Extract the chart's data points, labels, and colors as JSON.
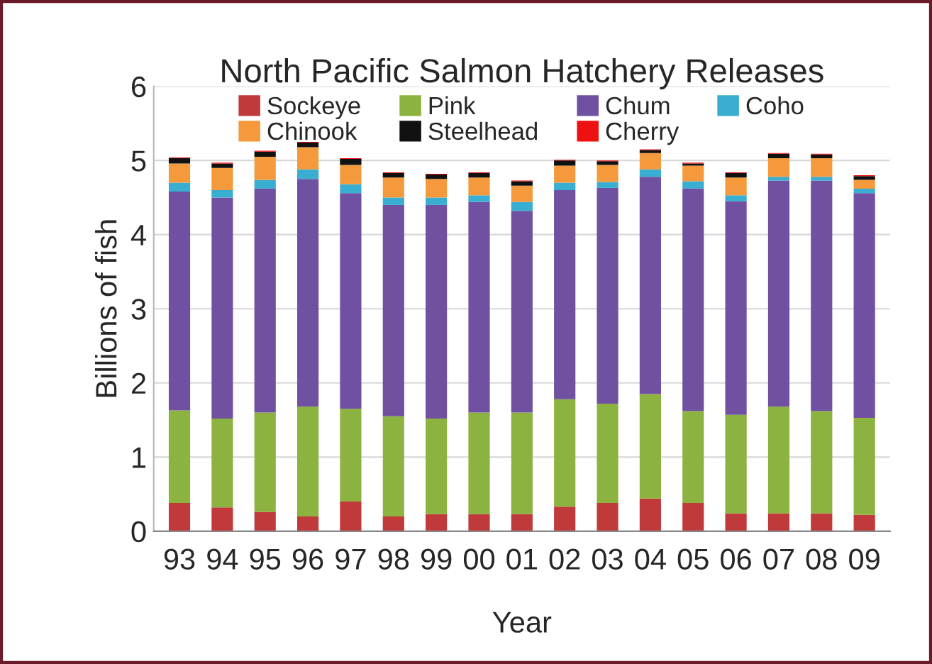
{
  "chart_data": {
    "type": "bar",
    "stacked": true,
    "title": "North Pacific Salmon Hatchery Releases",
    "xlabel": "Year",
    "ylabel": "Billions of fish",
    "categories": [
      "93",
      "94",
      "95",
      "96",
      "97",
      "98",
      "99",
      "00",
      "01",
      "02",
      "03",
      "04",
      "05",
      "06",
      "07",
      "08",
      "09"
    ],
    "series": [
      {
        "name": "Sockeye",
        "color": "#c0393b",
        "values": [
          0.38,
          0.32,
          0.26,
          0.2,
          0.4,
          0.2,
          0.23,
          0.23,
          0.23,
          0.33,
          0.38,
          0.44,
          0.38,
          0.24,
          0.24,
          0.24,
          0.22
        ]
      },
      {
        "name": "Pink",
        "color": "#8cb340",
        "values": [
          1.25,
          1.2,
          1.34,
          1.48,
          1.25,
          1.35,
          1.29,
          1.37,
          1.37,
          1.45,
          1.34,
          1.41,
          1.24,
          1.33,
          1.44,
          1.38,
          1.31
        ]
      },
      {
        "name": "Chum",
        "color": "#7050a0",
        "values": [
          2.95,
          2.98,
          3.02,
          3.07,
          2.91,
          2.85,
          2.88,
          2.84,
          2.72,
          2.82,
          2.91,
          2.93,
          3.0,
          2.88,
          3.05,
          3.11,
          3.03
        ]
      },
      {
        "name": "Coho",
        "color": "#3aaed0",
        "values": [
          0.12,
          0.1,
          0.12,
          0.13,
          0.12,
          0.1,
          0.1,
          0.09,
          0.12,
          0.1,
          0.08,
          0.1,
          0.1,
          0.08,
          0.05,
          0.05,
          0.06
        ]
      },
      {
        "name": "Chinook",
        "color": "#f59a3c",
        "values": [
          0.26,
          0.3,
          0.31,
          0.3,
          0.26,
          0.27,
          0.25,
          0.24,
          0.22,
          0.23,
          0.23,
          0.22,
          0.21,
          0.24,
          0.25,
          0.25,
          0.12
        ]
      },
      {
        "name": "Steelhead",
        "color": "#111111",
        "values": [
          0.07,
          0.06,
          0.07,
          0.06,
          0.08,
          0.06,
          0.06,
          0.06,
          0.06,
          0.07,
          0.05,
          0.04,
          0.03,
          0.06,
          0.06,
          0.05,
          0.05
        ]
      },
      {
        "name": "Cherry",
        "color": "#ee1111",
        "values": [
          0.01,
          0.01,
          0.01,
          0.01,
          0.01,
          0.01,
          0.01,
          0.01,
          0.01,
          0.01,
          0.01,
          0.01,
          0.01,
          0.01,
          0.01,
          0.01,
          0.01
        ]
      }
    ],
    "ylim": [
      0,
      6
    ],
    "yticks": [
      0,
      1,
      2,
      3,
      4,
      5,
      6
    ],
    "grid": "y",
    "legend": "top"
  }
}
